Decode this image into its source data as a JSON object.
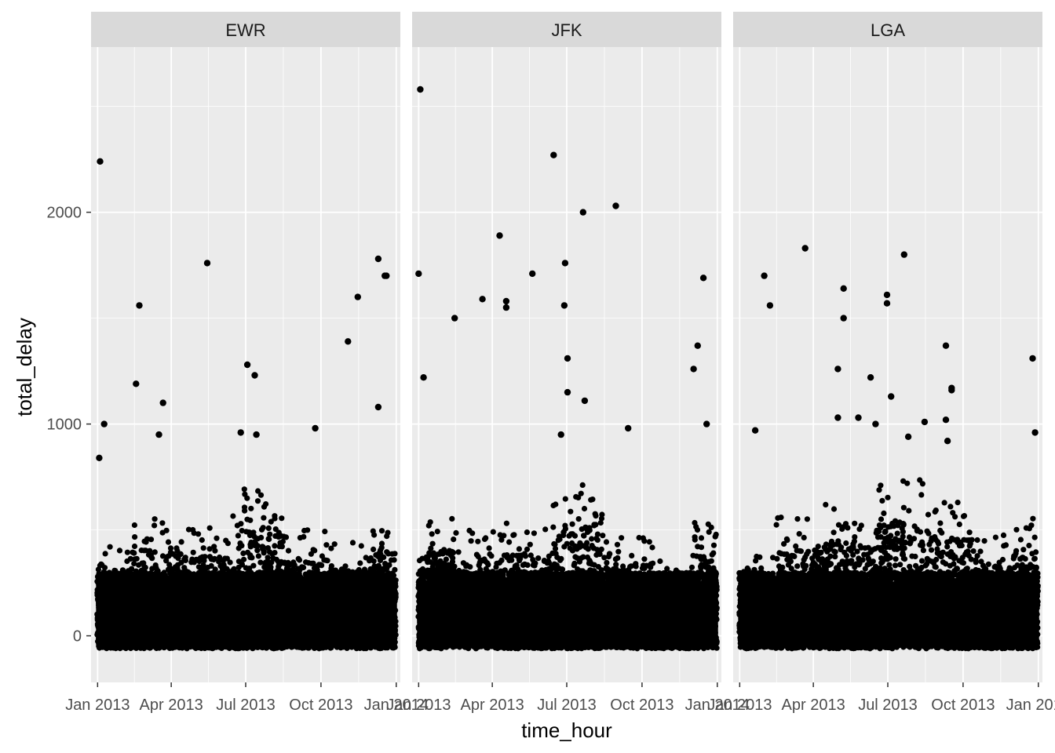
{
  "chart_data": {
    "type": "scatter",
    "facet_by": "origin",
    "xlabel": "time_hour",
    "ylabel": "total_delay",
    "xlim": [
      "2012-12-24",
      "2014-01-06"
    ],
    "ylim": [
      -220,
      2780
    ],
    "x_ticks": [
      {
        "date": "2013-01-01",
        "label": "Jan 2013"
      },
      {
        "date": "2013-04-01",
        "label": "Apr 2013"
      },
      {
        "date": "2013-07-01",
        "label": "Jul 2013"
      },
      {
        "date": "2013-10-01",
        "label": "Oct 2013"
      },
      {
        "date": "2014-01-01",
        "label": "Jan 2014"
      }
    ],
    "y_ticks": [
      0,
      1000,
      2000
    ],
    "y_minor": [
      500,
      1500,
      2500
    ],
    "grid": true,
    "point_color": "#000000",
    "panel_bg": "#ebebeb",
    "strip_bg": "#d9d9d9",
    "grid_color": "#ffffff",
    "facets": [
      {
        "label": "EWR",
        "outliers": [
          [
            "2013-01-04",
            2240
          ],
          [
            "2013-01-03",
            840
          ],
          [
            "2013-01-09",
            1000
          ],
          [
            "2013-02-17",
            1190
          ],
          [
            "2013-02-21",
            1560
          ],
          [
            "2013-03-22",
            1100
          ],
          [
            "2013-03-17",
            950
          ],
          [
            "2013-05-15",
            1760
          ],
          [
            "2013-07-03",
            1280
          ],
          [
            "2013-07-12",
            1230
          ],
          [
            "2013-09-24",
            980
          ],
          [
            "2013-11-03",
            1390
          ],
          [
            "2013-11-15",
            1600
          ],
          [
            "2013-12-10",
            1780
          ],
          [
            "2013-12-10",
            1080
          ],
          [
            "2013-12-18",
            1700
          ],
          [
            "2013-12-20",
            1700
          ],
          [
            "2013-06-25",
            960
          ],
          [
            "2013-07-14",
            950
          ]
        ],
        "bands": [
          {
            "from": "2013-01-01",
            "to": "2013-02-15",
            "top": 500
          },
          {
            "from": "2013-02-15",
            "to": "2013-04-15",
            "top": 620
          },
          {
            "from": "2013-04-15",
            "to": "2013-06-15",
            "top": 580
          },
          {
            "from": "2013-06-15",
            "to": "2013-08-15",
            "top": 760
          },
          {
            "from": "2013-08-15",
            "to": "2013-10-15",
            "top": 560
          },
          {
            "from": "2013-10-15",
            "to": "2013-12-01",
            "top": 500
          },
          {
            "from": "2013-12-01",
            "to": "2013-12-31",
            "top": 640
          }
        ]
      },
      {
        "label": "JFK",
        "outliers": [
          [
            "2013-01-03",
            2580
          ],
          [
            "2013-01-01",
            1710
          ],
          [
            "2013-01-07",
            1220
          ],
          [
            "2013-02-14",
            1500
          ],
          [
            "2013-03-20",
            1590
          ],
          [
            "2013-04-10",
            1890
          ],
          [
            "2013-04-18",
            1580
          ],
          [
            "2013-04-18",
            1550
          ],
          [
            "2013-05-20",
            1710
          ],
          [
            "2013-06-15",
            2270
          ],
          [
            "2013-06-29",
            1760
          ],
          [
            "2013-06-28",
            1560
          ],
          [
            "2013-07-02",
            1310
          ],
          [
            "2013-07-02",
            1150
          ],
          [
            "2013-07-21",
            2000
          ],
          [
            "2013-07-23",
            1110
          ],
          [
            "2013-08-30",
            2030
          ],
          [
            "2013-12-15",
            1690
          ],
          [
            "2013-12-08",
            1370
          ],
          [
            "2013-12-03",
            1260
          ],
          [
            "2013-12-19",
            1000
          ],
          [
            "2013-09-14",
            980
          ],
          [
            "2013-06-24",
            950
          ]
        ],
        "bands": [
          {
            "from": "2013-01-01",
            "to": "2013-02-15",
            "top": 620
          },
          {
            "from": "2013-02-15",
            "to": "2013-04-15",
            "top": 560
          },
          {
            "from": "2013-04-15",
            "to": "2013-06-15",
            "top": 600
          },
          {
            "from": "2013-06-15",
            "to": "2013-08-15",
            "top": 780
          },
          {
            "from": "2013-08-15",
            "to": "2013-10-15",
            "top": 540
          },
          {
            "from": "2013-10-15",
            "to": "2013-12-01",
            "top": 420
          },
          {
            "from": "2013-12-01",
            "to": "2013-12-31",
            "top": 600
          }
        ]
      },
      {
        "label": "LGA",
        "outliers": [
          [
            "2013-01-31",
            1700
          ],
          [
            "2013-02-07",
            1560
          ],
          [
            "2013-03-22",
            1830
          ],
          [
            "2013-01-20",
            970
          ],
          [
            "2013-05-08",
            1640
          ],
          [
            "2013-05-08",
            1500
          ],
          [
            "2013-05-01",
            1260
          ],
          [
            "2013-05-01",
            1030
          ],
          [
            "2013-06-10",
            1220
          ],
          [
            "2013-06-30",
            1610
          ],
          [
            "2013-06-30",
            1570
          ],
          [
            "2013-07-05",
            1130
          ],
          [
            "2013-07-21",
            1800
          ],
          [
            "2013-09-10",
            1370
          ],
          [
            "2013-09-10",
            1020
          ],
          [
            "2013-09-12",
            920
          ],
          [
            "2013-09-17",
            1170
          ],
          [
            "2013-09-17",
            1160
          ],
          [
            "2013-12-25",
            1310
          ],
          [
            "2013-12-28",
            960
          ],
          [
            "2013-05-26",
            1030
          ],
          [
            "2013-06-16",
            1000
          ],
          [
            "2013-07-26",
            940
          ],
          [
            "2013-08-15",
            1010
          ]
        ],
        "bands": [
          {
            "from": "2013-01-01",
            "to": "2013-02-15",
            "top": 460
          },
          {
            "from": "2013-02-15",
            "to": "2013-04-15",
            "top": 620
          },
          {
            "from": "2013-04-15",
            "to": "2013-06-15",
            "top": 680
          },
          {
            "from": "2013-06-15",
            "to": "2013-08-15",
            "top": 800
          },
          {
            "from": "2013-08-15",
            "to": "2013-10-15",
            "top": 700
          },
          {
            "from": "2013-10-15",
            "to": "2013-12-01",
            "top": 560
          },
          {
            "from": "2013-12-01",
            "to": "2013-12-31",
            "top": 620
          }
        ]
      }
    ]
  }
}
